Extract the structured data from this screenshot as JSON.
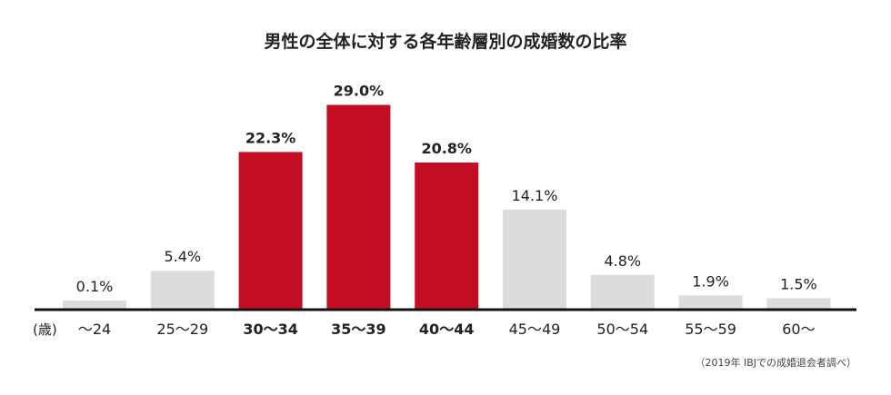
{
  "chart_data": {
    "type": "bar",
    "title": "男性の全体に対する各年齢層別の成婚数の比率",
    "unit_label": "(歳)",
    "categories": [
      "～24",
      "25～29",
      "30～34",
      "35～39",
      "40～44",
      "45～49",
      "50～54",
      "55～59",
      "60～"
    ],
    "values": [
      0.1,
      5.4,
      22.3,
      29.0,
      20.8,
      14.1,
      4.8,
      1.9,
      1.5
    ],
    "value_labels": [
      "0.1%",
      "5.4%",
      "22.3%",
      "29.0%",
      "20.8%",
      "14.1%",
      "4.8%",
      "1.9%",
      "1.5%"
    ],
    "highlighted": [
      false,
      false,
      true,
      true,
      true,
      false,
      false,
      false,
      false
    ],
    "ylim": [
      0,
      31
    ],
    "grid": false,
    "legend": "none",
    "source": "（2019年 IBJでの成婚退会者調べ）"
  },
  "colors": {
    "highlight": "#c30d23",
    "default": "#dcdcdc",
    "axis": "#111111"
  }
}
